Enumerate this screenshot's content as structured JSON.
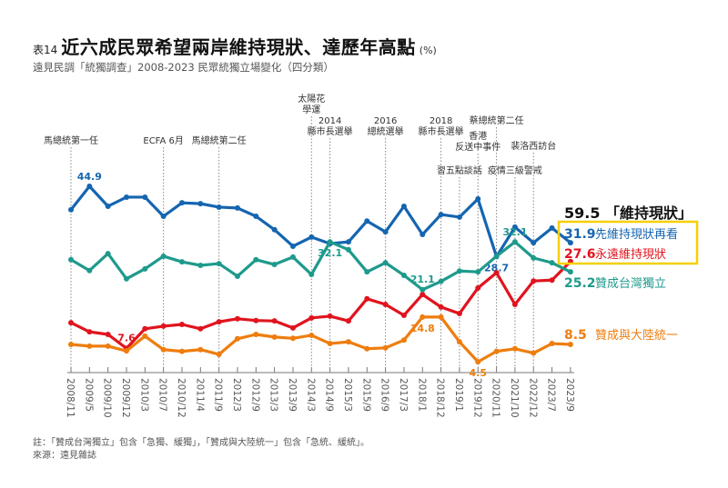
{
  "header": {
    "table_no": "表14",
    "title": "近六成民眾希望兩岸維持現狀、達歷年高點",
    "unit": "(%)",
    "subtitle": "遠見民調「統獨調查」2008-2023 民眾統獨立場變化（四分類）"
  },
  "footnote": {
    "note": "註：「贊成台灣獨立」包含「急獨、緩獨」，「贊成與大陸統一」包含「急統、緩統」。",
    "source": "來源：遠見雜誌"
  },
  "summary": {
    "total_value": "59.5",
    "total_label": "「維持現狀」",
    "box_color": "#f5d000"
  },
  "chart_data": {
    "type": "line",
    "title": "近六成民眾希望兩岸維持現狀、達歷年高點",
    "xlabel": "",
    "ylabel": "%",
    "ylim": [
      0,
      50
    ],
    "grid": false,
    "legend": "right (end-of-line labels)",
    "categories": [
      "2008/11",
      "2009/5",
      "2009/10",
      "2009/12",
      "2010/3",
      "2010/7",
      "2010/12",
      "2011/4",
      "2011/9",
      "2012/3",
      "2012/9",
      "2013/3",
      "2013/9",
      "2014/3",
      "2014/9",
      "2015/3",
      "2015/9",
      "2016/9",
      "2017/3",
      "2018/1",
      "2018/12",
      "2019/1",
      "2019/12",
      "2020/11",
      "2021/10",
      "2022/12",
      "2023/7",
      "2023/9"
    ],
    "series": [
      {
        "name": "先維持現狀再看",
        "color": "#1565b0",
        "end_value": "31.9",
        "values": [
          39.5,
          44.9,
          40.3,
          42.4,
          42.4,
          38.0,
          41.1,
          40.9,
          40.1,
          39.9,
          38.0,
          34.9,
          31.1,
          33.2,
          31.7,
          32.1,
          36.9,
          34.4,
          40.3,
          33.8,
          38.4,
          37.8,
          42.0,
          28.7,
          35.5,
          31.9,
          35.3,
          31.9
        ],
        "annotations": [
          {
            "index": 1,
            "text": "44.9"
          },
          {
            "index": 23,
            "text": "28.7"
          }
        ]
      },
      {
        "name": "永遠維持現狀",
        "color": "#e0141e",
        "end_value": "27.6",
        "values": [
          13.5,
          11.4,
          10.8,
          7.6,
          12.1,
          12.7,
          13.1,
          12.1,
          13.7,
          14.4,
          14.0,
          13.9,
          12.3,
          14.6,
          15.0,
          13.9,
          19.0,
          17.7,
          15.2,
          20.0,
          17.1,
          15.6,
          21.5,
          25.0,
          17.7,
          23.1,
          23.3,
          27.6
        ],
        "annotations": [
          {
            "index": 3,
            "text": "7.6"
          }
        ]
      },
      {
        "name": "贊成台灣獨立",
        "color": "#1e9a8c",
        "end_value": "25.2",
        "values": [
          28.0,
          25.5,
          29.4,
          23.6,
          25.9,
          28.8,
          27.5,
          26.7,
          27.1,
          24.2,
          28.0,
          26.9,
          28.6,
          24.6,
          32.1,
          30.3,
          25.2,
          27.3,
          24.4,
          21.1,
          23.0,
          25.4,
          25.2,
          28.8,
          32.1,
          28.4,
          27.3,
          25.2
        ],
        "annotations": [
          {
            "index": 14,
            "text": "32.1"
          },
          {
            "index": 19,
            "text": "21.1"
          },
          {
            "index": 24,
            "text": "32.1"
          }
        ]
      },
      {
        "name": "贊成與大陸統一",
        "color": "#ee7d0e",
        "end_value": "8.5",
        "values": [
          8.5,
          8.1,
          8.1,
          7.0,
          10.4,
          7.3,
          6.9,
          7.3,
          6.2,
          9.8,
          10.8,
          10.2,
          9.9,
          10.6,
          8.7,
          9.1,
          7.5,
          7.7,
          9.5,
          14.8,
          14.8,
          9.1,
          4.5,
          6.9,
          7.5,
          6.5,
          8.7,
          8.5
        ],
        "annotations": [
          {
            "index": 19,
            "text": "14.8"
          },
          {
            "index": 22,
            "text": "4.5"
          }
        ]
      }
    ],
    "events": [
      {
        "index": 0,
        "label": [
          "馬總統第一任"
        ]
      },
      {
        "index": 5,
        "label": [
          "ECFA 6月"
        ]
      },
      {
        "index": 8,
        "label": [
          "馬總統第二任"
        ]
      },
      {
        "index": 13,
        "label": [
          "太陽花",
          "學運"
        ]
      },
      {
        "index": 14,
        "label": [
          "2014",
          "縣市長選舉"
        ]
      },
      {
        "index": 17,
        "label": [
          "2016",
          "總統選舉"
        ]
      },
      {
        "index": 20,
        "label": [
          "2018",
          "縣市長選舉"
        ]
      },
      {
        "index": 21,
        "label": [
          "習五點談話"
        ]
      },
      {
        "index": 22,
        "label": [
          "香港",
          "反送中事件"
        ]
      },
      {
        "index": 23,
        "label": [
          "蔡總統第二任"
        ]
      },
      {
        "index": 24,
        "label": [
          "疫情三級警戒"
        ]
      },
      {
        "index": 25,
        "label": [
          "裴洛西訪台"
        ]
      }
    ]
  }
}
